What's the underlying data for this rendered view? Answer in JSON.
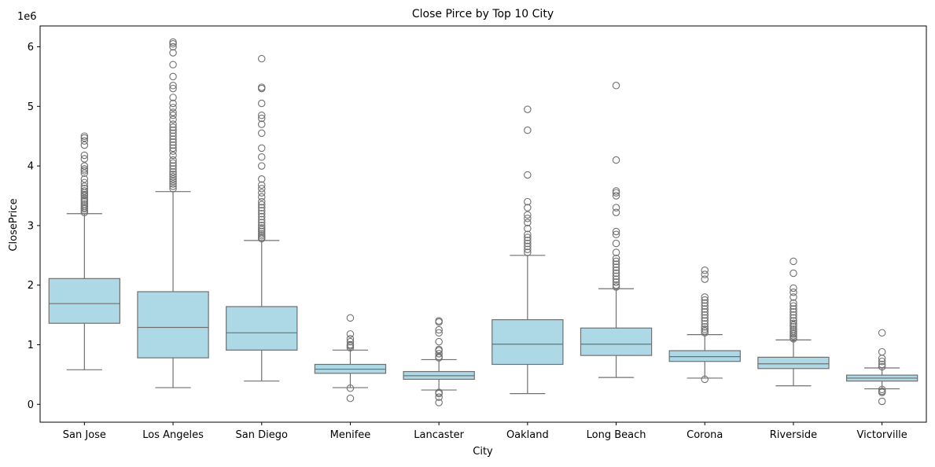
{
  "chart_data": {
    "type": "box",
    "title": "Close Pirce by Top 10 City",
    "xlabel": "City",
    "ylabel": "ClosePrice",
    "y_offset_label": "1e6",
    "ylim": [
      -0.3,
      6.35
    ],
    "yticks": [
      0,
      1,
      2,
      3,
      4,
      5,
      6
    ],
    "grid": false,
    "colors": {
      "box_fill": "#add8e6",
      "line": "#707070",
      "axis": "#000000"
    },
    "categories": [
      "San Jose",
      "Los Angeles",
      "San Diego",
      "Menifee",
      "Lancaster",
      "Oakland",
      "Long Beach",
      "Corona",
      "Riverside",
      "Victorville"
    ],
    "boxes": [
      {
        "category": "San Jose",
        "q1": 1.36,
        "median": 1.69,
        "q3": 2.11,
        "whisker_low": 0.58,
        "whisker_high": 3.2,
        "outliers": [
          3.22,
          3.25,
          3.28,
          3.3,
          3.33,
          3.36,
          3.4,
          3.43,
          3.46,
          3.5,
          3.52,
          3.55,
          3.58,
          3.62,
          3.66,
          3.72,
          3.78,
          3.88,
          3.92,
          3.95,
          4.0,
          4.12,
          4.18,
          4.35,
          4.42,
          4.47,
          4.5
        ]
      },
      {
        "category": "Los Angeles",
        "q1": 0.78,
        "median": 1.29,
        "q3": 1.89,
        "whisker_low": 0.28,
        "whisker_high": 3.57,
        "outliers": [
          3.62,
          3.66,
          3.7,
          3.74,
          3.78,
          3.82,
          3.86,
          3.9,
          3.95,
          4.0,
          4.05,
          4.1,
          4.18,
          4.25,
          4.3,
          4.35,
          4.4,
          4.45,
          4.5,
          4.55,
          4.6,
          4.65,
          4.7,
          4.78,
          4.85,
          4.9,
          4.98,
          5.05,
          5.15,
          5.3,
          5.35,
          5.5,
          5.7,
          5.9,
          6.0,
          6.05,
          6.08
        ]
      },
      {
        "category": "San Diego",
        "q1": 0.91,
        "median": 1.2,
        "q3": 1.64,
        "whisker_low": 0.39,
        "whisker_high": 2.75,
        "outliers": [
          2.78,
          2.8,
          2.83,
          2.86,
          2.9,
          2.93,
          2.96,
          3.0,
          3.05,
          3.1,
          3.15,
          3.2,
          3.25,
          3.3,
          3.35,
          3.4,
          3.48,
          3.55,
          3.62,
          3.68,
          3.78,
          4.0,
          4.15,
          4.3,
          4.55,
          4.7,
          4.8,
          4.85,
          5.05,
          5.3,
          5.32,
          5.8
        ]
      },
      {
        "category": "Menifee",
        "q1": 0.52,
        "median": 0.59,
        "q3": 0.67,
        "whisker_low": 0.28,
        "whisker_high": 0.91,
        "outliers": [
          0.1,
          0.27,
          0.95,
          0.98,
          1.0,
          1.05,
          1.1,
          1.18,
          1.45
        ]
      },
      {
        "category": "Lancaster",
        "q1": 0.42,
        "median": 0.48,
        "q3": 0.55,
        "whisker_low": 0.24,
        "whisker_high": 0.75,
        "outliers": [
          0.03,
          0.12,
          0.18,
          0.2,
          0.78,
          0.8,
          0.85,
          0.9,
          0.92,
          1.05,
          1.2,
          1.25,
          1.38,
          1.4
        ]
      },
      {
        "category": "Oakland",
        "q1": 0.67,
        "median": 1.01,
        "q3": 1.42,
        "whisker_low": 0.18,
        "whisker_high": 2.5,
        "outliers": [
          2.55,
          2.6,
          2.65,
          2.7,
          2.75,
          2.8,
          2.85,
          2.95,
          3.05,
          3.12,
          3.18,
          3.3,
          3.4,
          3.85,
          4.6,
          4.95
        ]
      },
      {
        "category": "Long Beach",
        "q1": 0.82,
        "median": 1.01,
        "q3": 1.28,
        "whisker_low": 0.45,
        "whisker_high": 1.94,
        "outliers": [
          1.97,
          2.0,
          2.05,
          2.1,
          2.15,
          2.2,
          2.25,
          2.3,
          2.35,
          2.4,
          2.45,
          2.55,
          2.7,
          2.85,
          2.9,
          3.22,
          3.3,
          3.5,
          3.55,
          3.58,
          4.1,
          5.35
        ]
      },
      {
        "category": "Corona",
        "q1": 0.72,
        "median": 0.8,
        "q3": 0.9,
        "whisker_low": 0.44,
        "whisker_high": 1.17,
        "outliers": [
          0.42,
          1.2,
          1.23,
          1.26,
          1.3,
          1.35,
          1.4,
          1.45,
          1.5,
          1.55,
          1.6,
          1.65,
          1.7,
          1.75,
          1.8,
          2.1,
          2.18,
          2.25
        ]
      },
      {
        "category": "Riverside",
        "q1": 0.6,
        "median": 0.68,
        "q3": 0.79,
        "whisker_low": 0.31,
        "whisker_high": 1.08,
        "outliers": [
          1.1,
          1.12,
          1.15,
          1.18,
          1.2,
          1.23,
          1.26,
          1.3,
          1.33,
          1.36,
          1.4,
          1.45,
          1.5,
          1.55,
          1.6,
          1.65,
          1.7,
          1.8,
          1.88,
          1.95,
          2.2,
          2.4
        ]
      },
      {
        "category": "Victorville",
        "q1": 0.39,
        "median": 0.44,
        "q3": 0.49,
        "whisker_low": 0.26,
        "whisker_high": 0.61,
        "outliers": [
          0.05,
          0.2,
          0.22,
          0.25,
          0.63,
          0.67,
          0.72,
          0.77,
          0.88,
          1.2
        ]
      }
    ]
  }
}
